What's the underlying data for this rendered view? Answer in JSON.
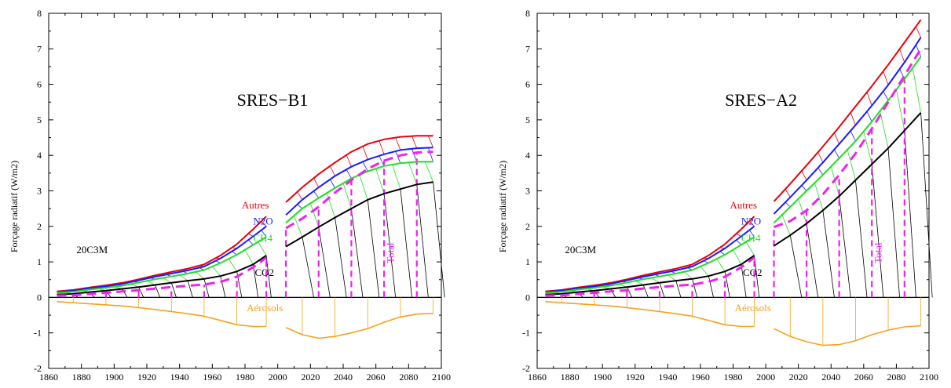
{
  "colors": {
    "autres": "#e8000b",
    "n2o": "#1a1aff",
    "ch4": "#22dd22",
    "co2": "#000000",
    "total": "#ee22ee",
    "aerosols": "#f5a21b"
  },
  "chart_data": [
    {
      "type": "line",
      "title": "SRES−B1",
      "xlabel": "",
      "ylabel": "Forçage radiatif (W/m2)",
      "xlim": [
        1860,
        2100
      ],
      "ylim": [
        -2,
        8
      ],
      "xticks": [
        1860,
        1880,
        1900,
        1920,
        1940,
        1960,
        1980,
        2000,
        2020,
        2040,
        2060,
        2080,
        2100
      ],
      "yticks": [
        -2,
        -1,
        0,
        1,
        2,
        3,
        4,
        5,
        6,
        7,
        8
      ],
      "grid": false,
      "annotations": {
        "hist": "20C3M",
        "autres": "Autres",
        "n2o": "N2O",
        "ch4": "CH4",
        "co2": "CO2",
        "total": "Total",
        "aerosols": "Aérosols"
      },
      "historical": {
        "x": [
          1865,
          1875,
          1885,
          1895,
          1905,
          1915,
          1925,
          1935,
          1945,
          1955,
          1965,
          1975,
          1985,
          1993
        ],
        "series": [
          {
            "name": "Autres",
            "values": [
              0.17,
              0.21,
              0.28,
              0.34,
              0.41,
              0.51,
              0.62,
              0.72,
              0.81,
              0.93,
              1.18,
              1.5,
              1.92,
              2.28
            ]
          },
          {
            "name": "N2O",
            "values": [
              0.15,
              0.19,
              0.26,
              0.31,
              0.38,
              0.48,
              0.58,
              0.67,
              0.76,
              0.87,
              1.1,
              1.38,
              1.72,
              2.0
            ]
          },
          {
            "name": "CH4",
            "values": [
              0.13,
              0.16,
              0.22,
              0.27,
              0.33,
              0.42,
              0.51,
              0.59,
              0.67,
              0.77,
              0.97,
              1.2,
              1.48,
              1.7
            ]
          },
          {
            "name": "CO2",
            "values": [
              0.08,
              0.1,
              0.15,
              0.19,
              0.24,
              0.29,
              0.35,
              0.41,
              0.47,
              0.52,
              0.6,
              0.73,
              0.93,
              1.18
            ]
          },
          {
            "name": "Total",
            "values": [
              0.05,
              0.06,
              0.1,
              0.13,
              0.17,
              0.2,
              0.25,
              0.29,
              0.33,
              0.36,
              0.44,
              0.58,
              0.85,
              1.12
            ]
          },
          {
            "name": "Aérosols",
            "values": [
              -0.12,
              -0.15,
              -0.18,
              -0.21,
              -0.24,
              -0.29,
              -0.34,
              -0.4,
              -0.46,
              -0.53,
              -0.65,
              -0.77,
              -0.82,
              -0.82
            ]
          }
        ]
      },
      "scenario": {
        "x": [
          2005,
          2015,
          2025,
          2035,
          2045,
          2055,
          2065,
          2075,
          2085,
          2095
        ],
        "series": [
          {
            "name": "Autres",
            "values": [
              2.68,
              3.1,
              3.47,
              3.8,
              4.1,
              4.32,
              4.45,
              4.52,
              4.55,
              4.55
            ]
          },
          {
            "name": "N2O",
            "values": [
              2.32,
              2.75,
              3.1,
              3.42,
              3.68,
              3.88,
              4.03,
              4.15,
              4.2,
              4.22
            ]
          },
          {
            "name": "CH4",
            "values": [
              2.1,
              2.5,
              2.8,
              3.08,
              3.35,
              3.55,
              3.7,
              3.78,
              3.82,
              3.82
            ]
          },
          {
            "name": "CO2",
            "values": [
              1.43,
              1.7,
              1.98,
              2.25,
              2.5,
              2.75,
              2.92,
              3.05,
              3.18,
              3.25
            ]
          },
          {
            "name": "Total",
            "values": [
              1.95,
              2.22,
              2.55,
              2.95,
              3.3,
              3.62,
              3.85,
              4.0,
              4.08,
              4.1
            ]
          },
          {
            "name": "Aérosols",
            "values": [
              -0.85,
              -1.05,
              -1.15,
              -1.1,
              -1.0,
              -0.88,
              -0.7,
              -0.55,
              -0.47,
              -0.45
            ]
          }
        ]
      }
    },
    {
      "type": "line",
      "title": "SRES−A2",
      "xlabel": "",
      "ylabel": "Forçage radiatif (W/m2)",
      "xlim": [
        1860,
        2100
      ],
      "ylim": [
        -2,
        8
      ],
      "xticks": [
        1860,
        1880,
        1900,
        1920,
        1940,
        1960,
        1980,
        2000,
        2020,
        2040,
        2060,
        2080,
        2100
      ],
      "yticks": [
        -2,
        -1,
        0,
        1,
        2,
        3,
        4,
        5,
        6,
        7,
        8
      ],
      "grid": false,
      "annotations": {
        "hist": "20C3M",
        "autres": "Autres",
        "n2o": "N2O",
        "ch4": "CH4",
        "co2": "CO2",
        "total": "Total",
        "aerosols": "Aérosols"
      },
      "historical": {
        "x": [
          1865,
          1875,
          1885,
          1895,
          1905,
          1915,
          1925,
          1935,
          1945,
          1955,
          1965,
          1975,
          1985,
          1993
        ],
        "series": [
          {
            "name": "Autres",
            "values": [
              0.17,
              0.21,
              0.28,
              0.34,
              0.41,
              0.51,
              0.62,
              0.72,
              0.81,
              0.93,
              1.18,
              1.5,
              1.92,
              2.28
            ]
          },
          {
            "name": "N2O",
            "values": [
              0.15,
              0.19,
              0.26,
              0.31,
              0.38,
              0.48,
              0.58,
              0.67,
              0.76,
              0.87,
              1.1,
              1.38,
              1.72,
              2.0
            ]
          },
          {
            "name": "CH4",
            "values": [
              0.13,
              0.16,
              0.22,
              0.27,
              0.33,
              0.42,
              0.51,
              0.59,
              0.67,
              0.77,
              0.97,
              1.2,
              1.48,
              1.7
            ]
          },
          {
            "name": "CO2",
            "values": [
              0.08,
              0.1,
              0.15,
              0.19,
              0.24,
              0.29,
              0.35,
              0.41,
              0.47,
              0.52,
              0.6,
              0.73,
              0.93,
              1.18
            ]
          },
          {
            "name": "Total",
            "values": [
              0.05,
              0.06,
              0.1,
              0.13,
              0.17,
              0.2,
              0.25,
              0.29,
              0.33,
              0.36,
              0.44,
              0.58,
              0.85,
              1.12
            ]
          },
          {
            "name": "Aérosols",
            "values": [
              -0.12,
              -0.15,
              -0.18,
              -0.21,
              -0.24,
              -0.29,
              -0.34,
              -0.4,
              -0.46,
              -0.53,
              -0.65,
              -0.77,
              -0.82,
              -0.82
            ]
          }
        ]
      },
      "scenario": {
        "x": [
          2005,
          2015,
          2025,
          2035,
          2045,
          2055,
          2065,
          2075,
          2085,
          2095
        ],
        "series": [
          {
            "name": "Autres",
            "values": [
              2.7,
              3.2,
              3.72,
              4.25,
              4.8,
              5.38,
              5.95,
              6.55,
              7.18,
              7.82
            ]
          },
          {
            "name": "N2O",
            "values": [
              2.35,
              2.82,
              3.3,
              3.8,
              4.32,
              4.85,
              5.4,
              5.98,
              6.62,
              7.32
            ]
          },
          {
            "name": "CH4",
            "values": [
              2.1,
              2.55,
              3.0,
              3.45,
              3.92,
              4.4,
              4.95,
              5.55,
              6.15,
              6.78
            ]
          },
          {
            "name": "CO2",
            "values": [
              1.45,
              1.75,
              2.08,
              2.45,
              2.85,
              3.3,
              3.75,
              4.2,
              4.7,
              5.2
            ]
          },
          {
            "name": "Total",
            "values": [
              1.98,
              2.15,
              2.45,
              2.9,
              3.45,
              4.05,
              4.75,
              5.5,
              6.25,
              7.0
            ]
          },
          {
            "name": "Aérosols",
            "values": [
              -0.88,
              -1.1,
              -1.25,
              -1.35,
              -1.33,
              -1.22,
              -1.05,
              -0.92,
              -0.83,
              -0.8
            ]
          }
        ]
      }
    }
  ]
}
